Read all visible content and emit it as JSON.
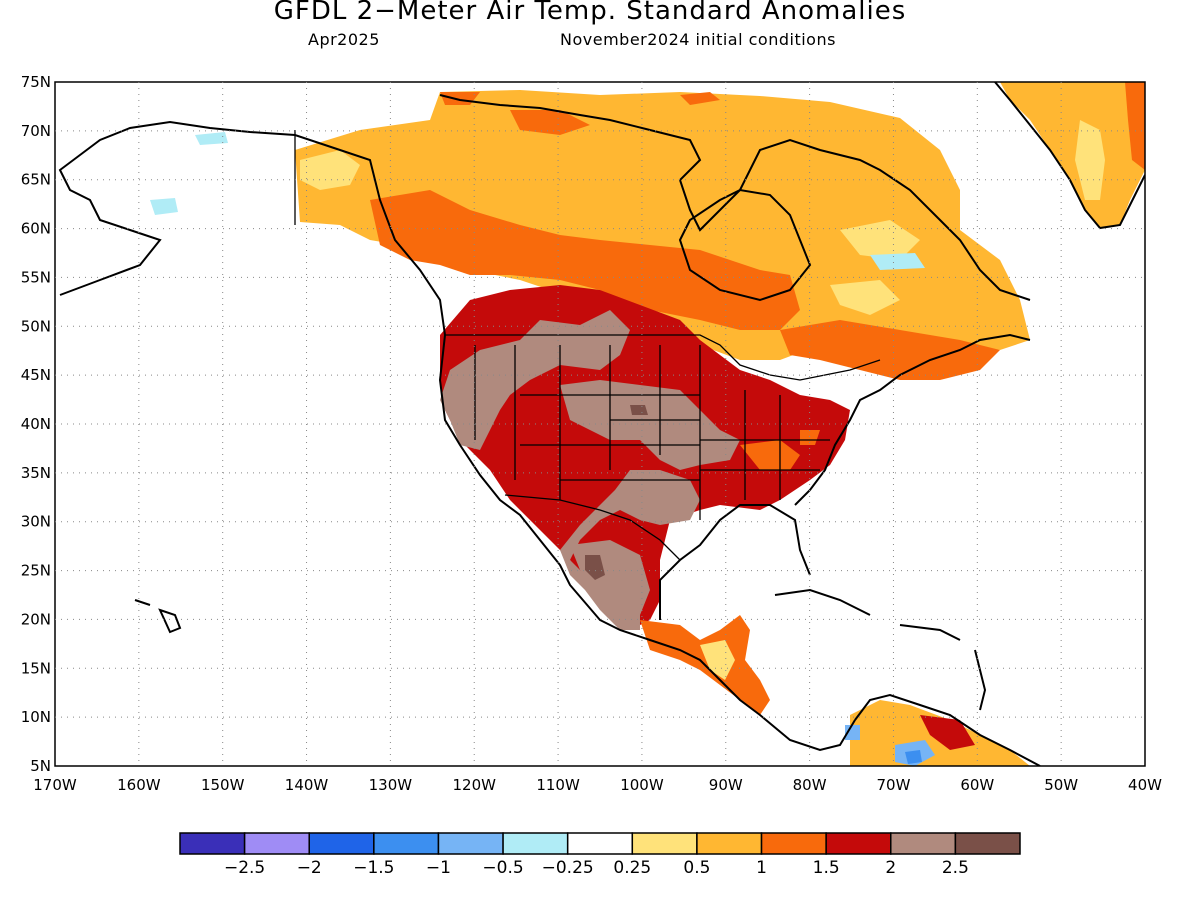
{
  "title": "GFDL 2−Meter Air Temp. Standard Anomalies",
  "valid_month": "Apr2025",
  "initial_conditions": "November2024 initial conditions",
  "lat_labels": [
    "75N",
    "70N",
    "65N",
    "60N",
    "55N",
    "50N",
    "45N",
    "40N",
    "35N",
    "30N",
    "25N",
    "20N",
    "15N",
    "10N",
    "5N"
  ],
  "lon_labels": [
    "170W",
    "160W",
    "150W",
    "140W",
    "130W",
    "120W",
    "110W",
    "100W",
    "90W",
    "80W",
    "70W",
    "60W",
    "50W",
    "40W"
  ],
  "colorbar": {
    "colors": [
      "#3a2fb8",
      "#9f8cf5",
      "#1f64e8",
      "#3c8ff0",
      "#76b4f5",
      "#b0ecf6",
      "#ffffff",
      "#ffe27a",
      "#ffb732",
      "#f86a0c",
      "#c40a0a",
      "#b08a7e",
      "#7a5048"
    ],
    "labels": [
      "−2.5",
      "−2",
      "−1.5",
      "−1",
      "−0.5",
      "−0.25",
      "0.25",
      "0.5",
      "1",
      "1.5",
      "2",
      "2.5"
    ]
  }
}
